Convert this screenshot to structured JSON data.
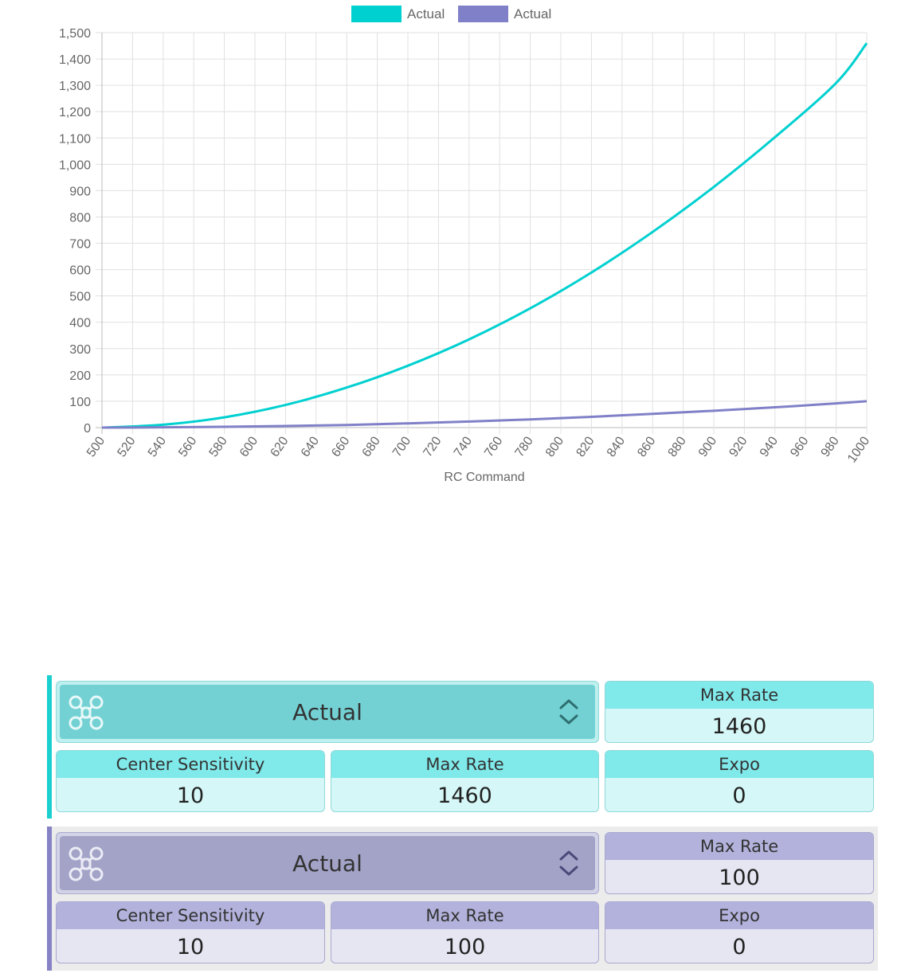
{
  "chart_data": {
    "type": "line",
    "xlabel": "RC Command",
    "ylabel": "",
    "xlim": [
      500,
      1000
    ],
    "ylim": [
      0,
      1500
    ],
    "x_ticks": [
      "500",
      "520",
      "540",
      "560",
      "580",
      "600",
      "620",
      "640",
      "660",
      "680",
      "700",
      "720",
      "740",
      "760",
      "780",
      "800",
      "820",
      "840",
      "860",
      "880",
      "900",
      "920",
      "940",
      "960",
      "980",
      "1000"
    ],
    "y_ticks": [
      "0",
      "100",
      "200",
      "300",
      "400",
      "500",
      "600",
      "700",
      "800",
      "900",
      "1,000",
      "1,100",
      "1,200",
      "1,300",
      "1,400",
      "1,500"
    ],
    "grid": true,
    "legend_position": "top-center",
    "series": [
      {
        "name": "Actual",
        "color": "#00d0d0",
        "x": [
          500,
          540,
          580,
          620,
          660,
          700,
          740,
          780,
          820,
          860,
          900,
          940,
          980,
          1000
        ],
        "y": [
          0,
          11,
          39,
          86,
          152,
          235,
          335,
          453,
          589,
          743,
          914,
          1103,
          1309,
          1460
        ]
      },
      {
        "name": "Actual",
        "color": "#8080c8",
        "x": [
          500,
          540,
          580,
          620,
          660,
          700,
          740,
          780,
          820,
          860,
          900,
          940,
          980,
          1000
        ],
        "y": [
          0,
          1,
          3,
          6,
          10,
          16,
          23,
          31,
          41,
          52,
          64,
          77,
          92,
          100
        ]
      }
    ]
  },
  "panels": [
    {
      "accent": "#1ccfcf",
      "head_color": "#80e9ea",
      "value_bg": "#d6f7f7",
      "border": "#8fd8d8",
      "selector_bg": "#73d1d4",
      "selector_outer": "#bff0f0",
      "rate_type": "Actual",
      "icon": "drone-icon",
      "max_rate_label": "Max Rate",
      "max_rate_value": "1460",
      "center_sensitivity_label": "Center Sensitivity",
      "center_sensitivity_value": "10",
      "max_rate2_label": "Max Rate",
      "max_rate2_value": "1460",
      "expo_label": "Expo",
      "expo_value": "0"
    },
    {
      "accent": "#8682c5",
      "head_color": "#b2b2dc",
      "value_bg": "#e6e6f3",
      "border": "#a8a8cf",
      "selector_bg": "#a3a3c8",
      "selector_outer": "#d3d3e8",
      "rate_type": "Actual",
      "icon": "drone-icon",
      "max_rate_label": "Max Rate",
      "max_rate_value": "100",
      "center_sensitivity_label": "Center Sensitivity",
      "center_sensitivity_value": "10",
      "max_rate2_label": "Max Rate",
      "max_rate2_value": "100",
      "expo_label": "Expo",
      "expo_value": "0"
    }
  ]
}
